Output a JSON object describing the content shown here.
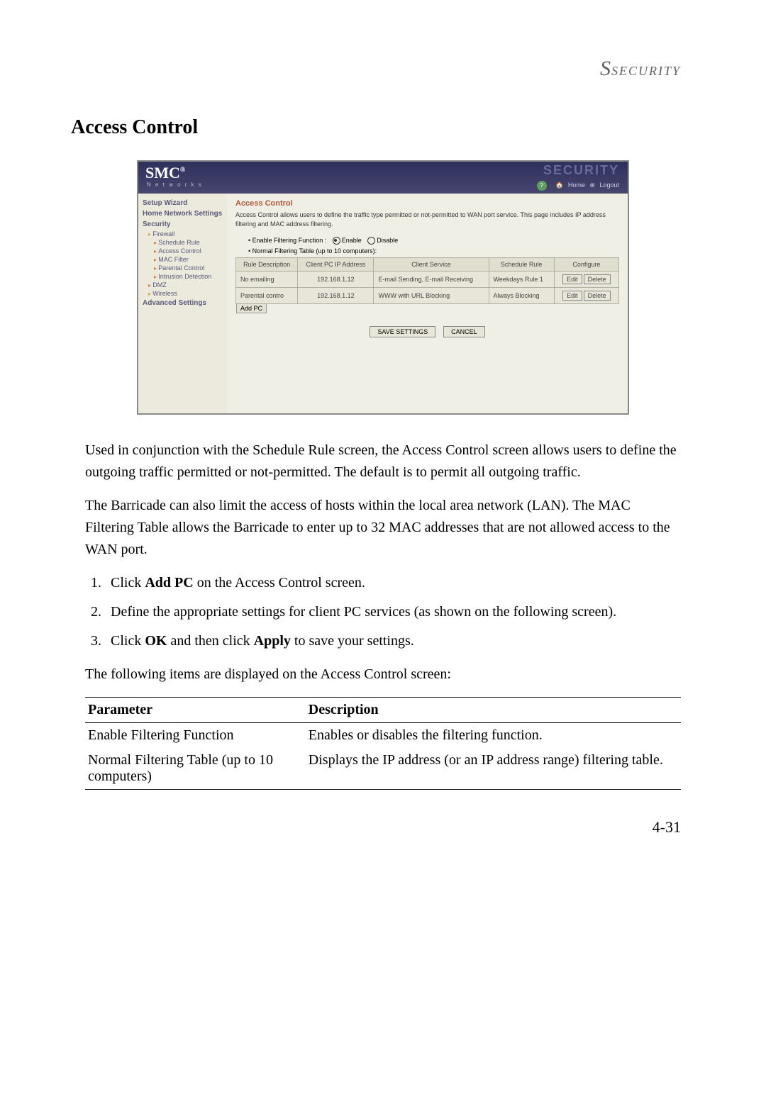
{
  "section_header": "SECURITY",
  "page_title": "Access Control",
  "page_number": "4-31",
  "screenshot": {
    "logo": "SMC",
    "logo_sup": "®",
    "logo_sub": "N e t w o r k s",
    "brand_word": "SECURITY",
    "toplinks": {
      "home": "Home",
      "logout": "Logout"
    },
    "sidebar": {
      "setup_wizard": "Setup Wizard",
      "home_network": "Home Network Settings",
      "security": "Security",
      "firewall": "Firewall",
      "schedule_rule": "Schedule Rule",
      "access_control": "Access Control",
      "mac_filter": "MAC Filter",
      "parental_control": "Parental Control",
      "intrusion_detection": "Intrusion Detection",
      "dmz": "DMZ",
      "wireless": "Wireless",
      "advanced": "Advanced Settings"
    },
    "main": {
      "title": "Access Control",
      "desc": "Access Control allows users to define the traffic type permitted or not-permitted to WAN port service. This page includes IP address filtering and MAC address filtering.",
      "enable_label": "Enable Filtering Function :",
      "enable_opt": "Enable",
      "disable_opt": "Disable",
      "filtering_table_label": "Normal Filtering Table (up to 10 computers):",
      "headers": {
        "rule_desc": "Rule Description",
        "client_ip": "Client PC IP Address",
        "client_service": "Client Service",
        "schedule_rule": "Schedule Rule",
        "configure": "Configure"
      },
      "rows": [
        {
          "desc": "No emailing",
          "ip": "192.168.1.12",
          "service": "E-mail Sending,  E-mail Receiving",
          "rule": "Weekdays Rule 1"
        },
        {
          "desc": "Parental contro",
          "ip": "192.168.1.12",
          "service": "WWW with URL Blocking",
          "rule": "Always Blocking"
        }
      ],
      "buttons": {
        "edit": "Edit",
        "delete": "Delete",
        "add_pc": "Add PC",
        "save": "SAVE SETTINGS",
        "cancel": "CANCEL"
      }
    }
  },
  "paragraphs": {
    "p1": "Used in conjunction with the Schedule Rule screen, the Access Control screen allows users to define the outgoing traffic permitted or not-permitted. The default is to permit all outgoing traffic.",
    "p2": "The Barricade can also limit the access of hosts within the local area network (LAN). The MAC Filtering Table allows the Barricade to enter up to 32 MAC addresses that are not allowed access to the WAN port."
  },
  "steps": {
    "s1_a": "Click ",
    "s1_b": "Add PC",
    "s1_c": " on the Access Control screen.",
    "s2": "Define the appropriate settings for client PC services (as shown on the following screen).",
    "s3_a": "Click ",
    "s3_b": "OK",
    "s3_c": " and then click ",
    "s3_d": "Apply",
    "s3_e": " to save your settings."
  },
  "after_steps": "The following items are displayed on the Access Control screen:",
  "param_table": {
    "h_param": "Parameter",
    "h_desc": "Description",
    "rows": [
      {
        "param": "Enable Filtering Function",
        "desc": "Enables or disables the filtering function."
      },
      {
        "param": "Normal Filtering Table (up to 10 computers)",
        "desc": "Displays the IP address (or an IP address range) filtering table."
      }
    ]
  }
}
